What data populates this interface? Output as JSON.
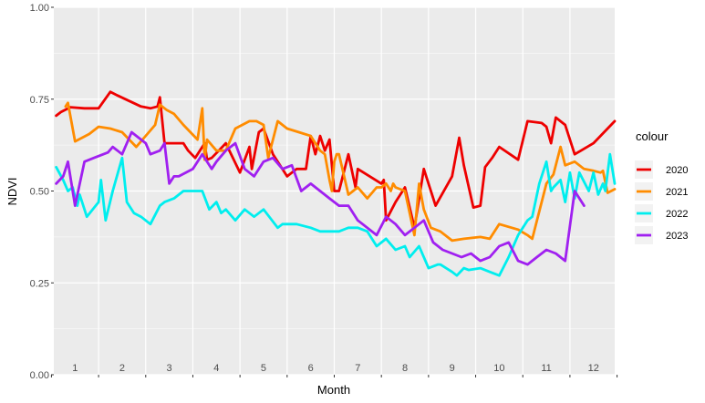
{
  "chart_data": {
    "type": "line",
    "title": "",
    "xlabel": "Month",
    "ylabel": "NDVI",
    "x_ticks": [
      "1",
      "2",
      "3",
      "4",
      "5",
      "6",
      "7",
      "8",
      "9",
      "10",
      "11",
      "12"
    ],
    "xlim": [
      0.55,
      12.45
    ],
    "ylim": [
      0.0,
      1.0
    ],
    "y_ticks": [
      "0.00",
      "0.25",
      "0.50",
      "0.75",
      "1.00"
    ],
    "grid": true,
    "legend": {
      "title": "colour",
      "position": "right"
    },
    "series": [
      {
        "name": "2020",
        "color": "#ee0000",
        "x": [
          0.6,
          0.7,
          0.9,
          1.2,
          1.3,
          1.5,
          1.75,
          1.9,
          2.4,
          2.6,
          2.75,
          2.8,
          2.9,
          3.0,
          3.3,
          3.4,
          3.55,
          3.75,
          3.8,
          3.9,
          4.05,
          4.2,
          4.5,
          4.7,
          4.75,
          4.9,
          5.0,
          5.2,
          5.5,
          5.7,
          5.9,
          6.0,
          6.1,
          6.2,
          6.3,
          6.4,
          6.5,
          6.6,
          6.8,
          6.95,
          7.0,
          7.5,
          7.55,
          7.6,
          7.8,
          8.0,
          8.2,
          8.4,
          8.65,
          9.0,
          9.15,
          9.25,
          9.45,
          9.6,
          9.7,
          9.85,
          10.0,
          10.4,
          10.6,
          10.9,
          11.0,
          11.1,
          11.2,
          11.4,
          11.6,
          12.0,
          12.45
        ],
        "y": [
          0.705,
          0.715,
          0.728,
          0.725,
          0.725,
          0.725,
          0.77,
          0.76,
          0.73,
          0.725,
          0.73,
          0.755,
          0.63,
          0.63,
          0.63,
          0.61,
          0.59,
          0.63,
          0.585,
          0.59,
          0.61,
          0.63,
          0.55,
          0.62,
          0.56,
          0.66,
          0.67,
          0.6,
          0.54,
          0.56,
          0.56,
          0.65,
          0.6,
          0.65,
          0.61,
          0.64,
          0.5,
          0.5,
          0.6,
          0.51,
          0.56,
          0.52,
          0.53,
          0.42,
          0.47,
          0.51,
          0.4,
          0.56,
          0.46,
          0.54,
          0.645,
          0.57,
          0.455,
          0.46,
          0.565,
          0.59,
          0.62,
          0.585,
          0.69,
          0.685,
          0.675,
          0.63,
          0.7,
          0.68,
          0.6,
          0.63,
          0.69
        ]
      },
      {
        "name": "2021",
        "color": "#ff8c00",
        "x": [
          0.8,
          0.85,
          1.0,
          1.3,
          1.5,
          1.75,
          2.0,
          2.3,
          2.7,
          2.8,
          2.95,
          3.1,
          3.3,
          3.6,
          3.7,
          3.75,
          3.8,
          4.0,
          4.2,
          4.4,
          4.7,
          4.8,
          4.85,
          5.0,
          5.1,
          5.3,
          5.5,
          5.75,
          6.0,
          6.15,
          6.2,
          6.3,
          6.4,
          6.45,
          6.5,
          6.55,
          6.6,
          6.8,
          7.0,
          7.2,
          7.4,
          7.5,
          7.6,
          7.7,
          7.75,
          7.8,
          8.0,
          8.2,
          8.3,
          8.4,
          8.55,
          8.75,
          9.0,
          9.25,
          9.6,
          9.8,
          10.0,
          10.4,
          10.6,
          10.7,
          11.0,
          11.15,
          11.3,
          11.4,
          11.6,
          11.8,
          12.0,
          12.15,
          12.2,
          12.3,
          12.45
        ],
        "y": [
          0.73,
          0.74,
          0.635,
          0.655,
          0.675,
          0.67,
          0.66,
          0.62,
          0.68,
          0.735,
          0.72,
          0.71,
          0.68,
          0.64,
          0.725,
          0.585,
          0.64,
          0.61,
          0.61,
          0.67,
          0.69,
          0.69,
          0.69,
          0.68,
          0.59,
          0.69,
          0.67,
          0.66,
          0.65,
          0.62,
          0.61,
          0.6,
          0.53,
          0.5,
          0.58,
          0.6,
          0.6,
          0.49,
          0.51,
          0.48,
          0.51,
          0.51,
          0.52,
          0.5,
          0.52,
          0.51,
          0.5,
          0.38,
          0.52,
          0.45,
          0.4,
          0.39,
          0.365,
          0.37,
          0.375,
          0.37,
          0.41,
          0.395,
          0.38,
          0.37,
          0.52,
          0.545,
          0.62,
          0.57,
          0.58,
          0.56,
          0.555,
          0.55,
          0.555,
          0.495,
          0.505
        ]
      },
      {
        "name": "2022",
        "color": "#00eeee",
        "x": [
          0.6,
          0.75,
          0.85,
          0.95,
          1.05,
          1.1,
          1.25,
          1.5,
          1.55,
          1.65,
          1.8,
          2.0,
          2.1,
          2.25,
          2.4,
          2.6,
          2.8,
          2.9,
          3.1,
          3.3,
          3.7,
          3.85,
          4.0,
          4.1,
          4.2,
          4.4,
          4.6,
          4.8,
          5.0,
          5.3,
          5.4,
          5.7,
          6.0,
          6.2,
          6.4,
          6.6,
          6.8,
          7.0,
          7.2,
          7.4,
          7.6,
          7.8,
          8.0,
          8.1,
          8.3,
          8.5,
          8.7,
          8.75,
          9.0,
          9.1,
          9.25,
          9.35,
          9.6,
          9.8,
          10.0,
          10.2,
          10.4,
          10.6,
          10.7,
          10.85,
          11.0,
          11.1,
          11.15,
          11.3,
          11.4,
          11.5,
          11.6,
          11.7,
          11.9,
          12.0,
          12.1,
          12.2,
          12.25,
          12.35,
          12.45
        ],
        "y": [
          0.565,
          0.53,
          0.5,
          0.51,
          0.46,
          0.49,
          0.43,
          0.47,
          0.53,
          0.42,
          0.5,
          0.59,
          0.47,
          0.44,
          0.43,
          0.41,
          0.46,
          0.47,
          0.48,
          0.5,
          0.5,
          0.45,
          0.47,
          0.44,
          0.45,
          0.42,
          0.45,
          0.43,
          0.45,
          0.4,
          0.41,
          0.41,
          0.4,
          0.39,
          0.39,
          0.39,
          0.4,
          0.4,
          0.39,
          0.35,
          0.37,
          0.34,
          0.35,
          0.32,
          0.35,
          0.29,
          0.3,
          0.3,
          0.28,
          0.27,
          0.29,
          0.285,
          0.29,
          0.28,
          0.27,
          0.32,
          0.38,
          0.42,
          0.43,
          0.52,
          0.58,
          0.5,
          0.51,
          0.53,
          0.47,
          0.55,
          0.48,
          0.55,
          0.5,
          0.55,
          0.49,
          0.52,
          0.5,
          0.6,
          0.52
        ]
      },
      {
        "name": "2023",
        "color": "#a020f0",
        "x": [
          0.6,
          0.75,
          0.85,
          1.0,
          1.2,
          1.4,
          1.7,
          1.8,
          2.0,
          2.2,
          2.5,
          2.6,
          2.8,
          2.9,
          3.0,
          3.1,
          3.2,
          3.5,
          3.7,
          3.8,
          3.9,
          4.0,
          4.2,
          4.4,
          4.6,
          4.8,
          5.0,
          5.2,
          5.4,
          5.6,
          5.8,
          6.0,
          6.2,
          6.4,
          6.6,
          6.8,
          7.0,
          7.2,
          7.4,
          7.6,
          7.8,
          8.0,
          8.2,
          8.4,
          8.6,
          8.8,
          9.0,
          9.2,
          9.4,
          9.6,
          9.8,
          10.0,
          10.2,
          10.4,
          10.6,
          10.8,
          11.0,
          11.2,
          11.4,
          11.6,
          11.8
        ],
        "y": [
          0.52,
          0.54,
          0.58,
          0.46,
          0.58,
          0.59,
          0.605,
          0.62,
          0.6,
          0.66,
          0.63,
          0.6,
          0.61,
          0.63,
          0.52,
          0.54,
          0.54,
          0.56,
          0.6,
          0.58,
          0.56,
          0.58,
          0.61,
          0.63,
          0.56,
          0.54,
          0.58,
          0.59,
          0.56,
          0.57,
          0.5,
          0.52,
          0.5,
          0.48,
          0.46,
          0.46,
          0.42,
          0.4,
          0.38,
          0.43,
          0.41,
          0.38,
          0.4,
          0.42,
          0.36,
          0.34,
          0.33,
          0.32,
          0.33,
          0.31,
          0.32,
          0.35,
          0.36,
          0.31,
          0.3,
          0.32,
          0.34,
          0.33,
          0.31,
          0.5,
          0.46
        ]
      }
    ]
  }
}
